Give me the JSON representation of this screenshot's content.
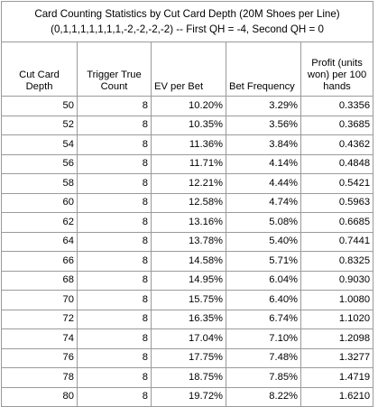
{
  "title": {
    "line1": "Card Counting Statistics by Cut Card Depth (20M Shoes per Line)",
    "line2": "(0,1,1,1,1,1,1,1,-2,-2,-2,-2) -- First QH = -4, Second QH = 0"
  },
  "columns": [
    "Cut Card Depth",
    "Trigger True Count",
    "EV per Bet",
    "Bet Frequency",
    "Profit (units won) per 100 hands"
  ],
  "rows": [
    [
      "50",
      "8",
      "10.20%",
      "3.29%",
      "0.3356"
    ],
    [
      "52",
      "8",
      "10.35%",
      "3.56%",
      "0.3685"
    ],
    [
      "54",
      "8",
      "11.36%",
      "3.84%",
      "0.4362"
    ],
    [
      "56",
      "8",
      "11.71%",
      "4.14%",
      "0.4848"
    ],
    [
      "58",
      "8",
      "12.21%",
      "4.44%",
      "0.5421"
    ],
    [
      "60",
      "8",
      "12.58%",
      "4.74%",
      "0.5963"
    ],
    [
      "62",
      "8",
      "13.16%",
      "5.08%",
      "0.6685"
    ],
    [
      "64",
      "8",
      "13.78%",
      "5.40%",
      "0.7441"
    ],
    [
      "66",
      "8",
      "14.58%",
      "5.71%",
      "0.8325"
    ],
    [
      "68",
      "8",
      "14.95%",
      "6.04%",
      "0.9030"
    ],
    [
      "70",
      "8",
      "15.75%",
      "6.40%",
      "1.0080"
    ],
    [
      "72",
      "8",
      "16.35%",
      "6.74%",
      "1.1020"
    ],
    [
      "74",
      "8",
      "17.04%",
      "7.10%",
      "1.2098"
    ],
    [
      "76",
      "8",
      "17.75%",
      "7.48%",
      "1.3277"
    ],
    [
      "78",
      "8",
      "18.75%",
      "7.85%",
      "1.4719"
    ],
    [
      "80",
      "8",
      "19.72%",
      "8.22%",
      "1.6210"
    ]
  ]
}
